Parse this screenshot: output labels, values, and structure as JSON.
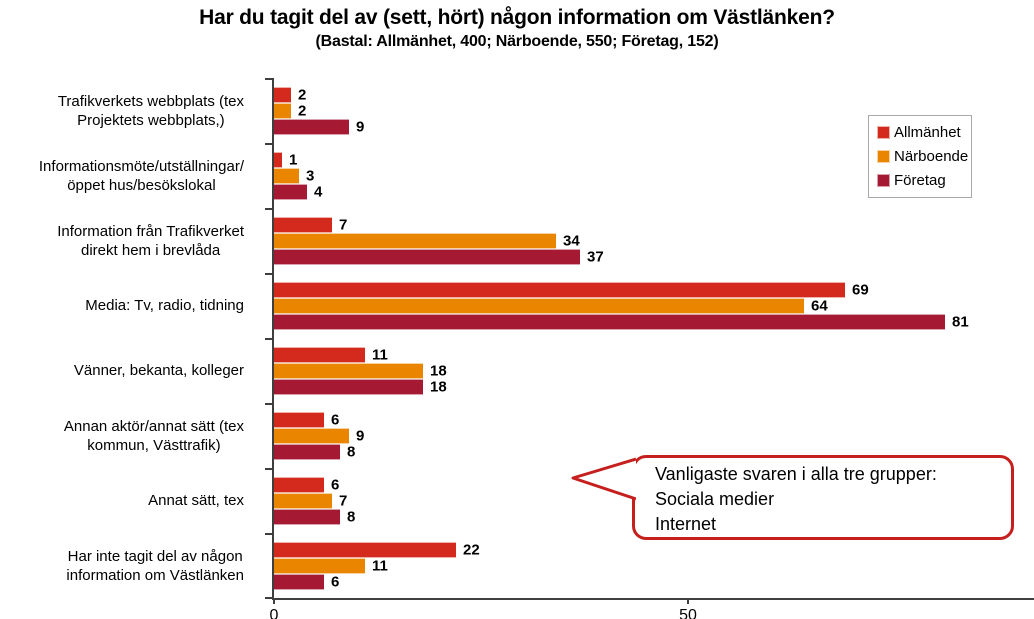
{
  "title": "Har du tagit del av (sett, hört) någon information om Västlänken?",
  "subtitle": "(Bastal: Allmänhet, 400; Närboende, 550; Företag, 152)",
  "chart_data": {
    "type": "bar",
    "orientation": "horizontal",
    "title": "Har du tagit del av (sett, hört) någon information om Västlänken?",
    "subtitle": "(Bastal: Allmänhet, 400; Närboende, 550; Företag, 152)",
    "categories": [
      [
        "Trafikverkets webbplats (tex",
        "Projektets webbplats,)"
      ],
      [
        "Informationsmöte/utställningar/",
        "öppet hus/besökslokal"
      ],
      [
        "Information från Trafikverket",
        "direkt hem i brevlåda"
      ],
      [
        "Media: Tv, radio, tidning"
      ],
      [
        "Vänner, bekanta, kolleger"
      ],
      [
        "Annan aktör/annat sätt (tex",
        "kommun, Västtrafik)"
      ],
      [
        "Annat sätt, tex"
      ],
      [
        "Har inte tagit del av någon",
        "information om Västlänken"
      ]
    ],
    "series": [
      {
        "name": "Allmänhet",
        "color": "#D42A1E",
        "edge": "#F0B1A9",
        "values": [
          2,
          1,
          7,
          69,
          11,
          6,
          6,
          22
        ]
      },
      {
        "name": "Närboende",
        "color": "#EA8500",
        "edge": "#F6D3A3",
        "values": [
          2,
          3,
          34,
          64,
          18,
          9,
          7,
          11
        ]
      },
      {
        "name": "Företag",
        "color": "#A51932",
        "edge": "#D9A2AF",
        "values": [
          9,
          4,
          37,
          81,
          18,
          8,
          8,
          6
        ]
      }
    ],
    "x_axis": {
      "ticks": [
        0,
        50
      ],
      "max": 91.5
    },
    "xlabel": "",
    "ylabel": "",
    "grid": false,
    "legend_position": "top-right"
  },
  "callout": {
    "lines": [
      "Vanligaste svaren i alla tre grupper:",
      "Sociala medier",
      "Internet"
    ]
  },
  "colors": {
    "axis": "#3F3F3F",
    "callout_border": "#C5201E",
    "legend_border": "#A8A8A8"
  }
}
